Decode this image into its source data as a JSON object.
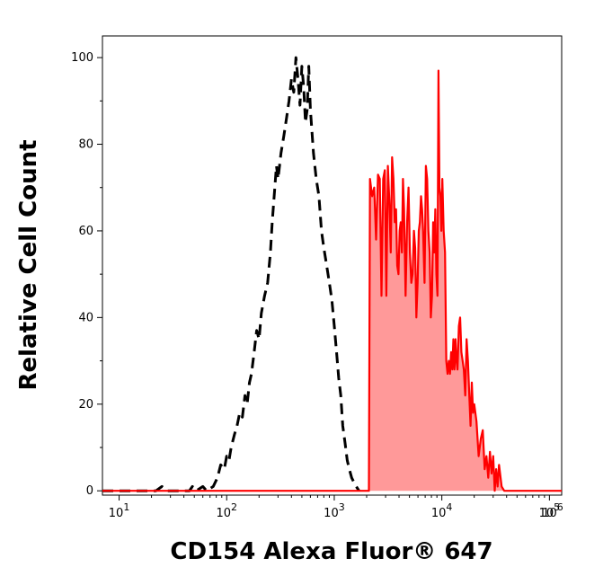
{
  "chart_data": {
    "type": "area",
    "xlabel": "CD154 Alexa Fluor® 647",
    "ylabel": "Relative Cell Count",
    "xscale": "log",
    "xlim": [
      7,
      130000
    ],
    "ylim": [
      -1,
      105
    ],
    "x_ticks": [
      {
        "value": 10,
        "base": "10",
        "exp": "1"
      },
      {
        "value": 100,
        "base": "10",
        "exp": "2"
      },
      {
        "value": 1000,
        "base": "10",
        "exp": "3"
      },
      {
        "value": 10000,
        "base": "10",
        "exp": "4"
      },
      {
        "value": 100000,
        "base": "10",
        "exp": "5"
      },
      {
        "value": 1000000,
        "base": "10",
        "exp": "6"
      }
    ],
    "y_ticks": [
      {
        "value": 0,
        "label": "0"
      },
      {
        "value": 20,
        "label": "20"
      },
      {
        "value": 40,
        "label": "40"
      },
      {
        "value": 60,
        "label": "60"
      },
      {
        "value": 80,
        "label": "80"
      },
      {
        "value": 100,
        "label": "100"
      }
    ],
    "series": [
      {
        "style": "dashed",
        "color": "#000000",
        "fill": "none",
        "points": [
          [
            7,
            0
          ],
          [
            22,
            0
          ],
          [
            25,
            1
          ],
          [
            28,
            0
          ],
          [
            40,
            0
          ],
          [
            45,
            0
          ],
          [
            48,
            1
          ],
          [
            52,
            0
          ],
          [
            60,
            1
          ],
          [
            65,
            0
          ],
          [
            75,
            1
          ],
          [
            82,
            3
          ],
          [
            88,
            6
          ],
          [
            95,
            5
          ],
          [
            100,
            8
          ],
          [
            105,
            7
          ],
          [
            110,
            10
          ],
          [
            118,
            13
          ],
          [
            125,
            15
          ],
          [
            132,
            18
          ],
          [
            140,
            17
          ],
          [
            148,
            22
          ],
          [
            155,
            20
          ],
          [
            163,
            25
          ],
          [
            170,
            27
          ],
          [
            180,
            32
          ],
          [
            190,
            37
          ],
          [
            200,
            35
          ],
          [
            210,
            41
          ],
          [
            225,
            45
          ],
          [
            240,
            48
          ],
          [
            255,
            55
          ],
          [
            265,
            62
          ],
          [
            280,
            70
          ],
          [
            290,
            75
          ],
          [
            300,
            72
          ],
          [
            320,
            78
          ],
          [
            340,
            82
          ],
          [
            360,
            86
          ],
          [
            380,
            90
          ],
          [
            400,
            95
          ],
          [
            420,
            92
          ],
          [
            440,
            100
          ],
          [
            460,
            95
          ],
          [
            480,
            89
          ],
          [
            500,
            98
          ],
          [
            520,
            93
          ],
          [
            540,
            85
          ],
          [
            560,
            88
          ],
          [
            580,
            98
          ],
          [
            600,
            88
          ],
          [
            640,
            78
          ],
          [
            680,
            72
          ],
          [
            720,
            68
          ],
          [
            760,
            60
          ],
          [
            800,
            56
          ],
          [
            850,
            52
          ],
          [
            900,
            48
          ],
          [
            950,
            44
          ],
          [
            1000,
            38
          ],
          [
            1050,
            32
          ],
          [
            1100,
            26
          ],
          [
            1150,
            22
          ],
          [
            1200,
            15
          ],
          [
            1260,
            11
          ],
          [
            1320,
            7
          ],
          [
            1380,
            5
          ],
          [
            1450,
            3
          ],
          [
            1520,
            2
          ],
          [
            1600,
            1
          ],
          [
            1700,
            0
          ]
        ]
      },
      {
        "style": "solid",
        "color": "#ff0000",
        "fill": "#ff9999",
        "points": [
          [
            7,
            0
          ],
          [
            2000,
            0
          ],
          [
            2100,
            0
          ],
          [
            2150,
            72
          ],
          [
            2250,
            68
          ],
          [
            2350,
            70
          ],
          [
            2450,
            58
          ],
          [
            2550,
            73
          ],
          [
            2650,
            72
          ],
          [
            2750,
            45
          ],
          [
            2850,
            72
          ],
          [
            2950,
            74
          ],
          [
            3050,
            45
          ],
          [
            3150,
            75
          ],
          [
            3250,
            67
          ],
          [
            3350,
            55
          ],
          [
            3450,
            77
          ],
          [
            3550,
            72
          ],
          [
            3650,
            62
          ],
          [
            3750,
            65
          ],
          [
            3850,
            52
          ],
          [
            3950,
            50
          ],
          [
            4050,
            60
          ],
          [
            4150,
            62
          ],
          [
            4250,
            55
          ],
          [
            4350,
            72
          ],
          [
            4450,
            65
          ],
          [
            4600,
            45
          ],
          [
            4750,
            62
          ],
          [
            4900,
            70
          ],
          [
            5050,
            55
          ],
          [
            5200,
            48
          ],
          [
            5350,
            50
          ],
          [
            5500,
            60
          ],
          [
            5650,
            56
          ],
          [
            5800,
            40
          ],
          [
            5950,
            48
          ],
          [
            6100,
            60
          ],
          [
            6250,
            62
          ],
          [
            6400,
            68
          ],
          [
            6550,
            65
          ],
          [
            6700,
            60
          ],
          [
            6900,
            48
          ],
          [
            7100,
            75
          ],
          [
            7300,
            72
          ],
          [
            7500,
            60
          ],
          [
            7700,
            55
          ],
          [
            7900,
            40
          ],
          [
            8100,
            45
          ],
          [
            8300,
            62
          ],
          [
            8500,
            55
          ],
          [
            8700,
            65
          ],
          [
            8900,
            50
          ],
          [
            9100,
            45
          ],
          [
            9300,
            97
          ],
          [
            9500,
            70
          ],
          [
            9700,
            68
          ],
          [
            9900,
            60
          ],
          [
            10100,
            72
          ],
          [
            10400,
            60
          ],
          [
            10700,
            55
          ],
          [
            11000,
            30
          ],
          [
            11300,
            27
          ],
          [
            11600,
            30
          ],
          [
            11900,
            27
          ],
          [
            12200,
            32
          ],
          [
            12500,
            28
          ],
          [
            12800,
            35
          ],
          [
            13100,
            28
          ],
          [
            13400,
            35
          ],
          [
            13700,
            30
          ],
          [
            14000,
            28
          ],
          [
            14400,
            38
          ],
          [
            14800,
            40
          ],
          [
            15200,
            32
          ],
          [
            15600,
            30
          ],
          [
            16000,
            28
          ],
          [
            16500,
            22
          ],
          [
            17000,
            35
          ],
          [
            17500,
            30
          ],
          [
            18000,
            22
          ],
          [
            18500,
            15
          ],
          [
            19000,
            25
          ],
          [
            19500,
            18
          ],
          [
            20000,
            20
          ],
          [
            21000,
            16
          ],
          [
            22000,
            8
          ],
          [
            23000,
            12
          ],
          [
            24000,
            14
          ],
          [
            25000,
            5
          ],
          [
            26000,
            8
          ],
          [
            27000,
            3
          ],
          [
            28000,
            9
          ],
          [
            29000,
            4
          ],
          [
            30000,
            8
          ],
          [
            31000,
            0
          ],
          [
            32000,
            5
          ],
          [
            33000,
            1
          ],
          [
            34000,
            6
          ],
          [
            36000,
            1
          ],
          [
            38000,
            0
          ],
          [
            130000,
            0
          ]
        ]
      }
    ]
  }
}
